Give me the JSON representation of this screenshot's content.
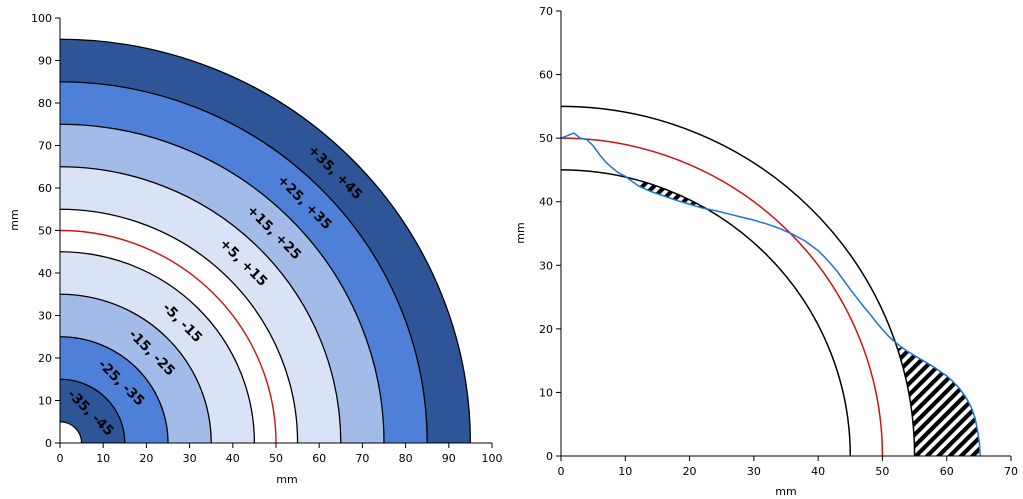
{
  "chart_data": [
    {
      "type": "quarter-ring-contour",
      "xlabel": "mm",
      "ylabel": "mm",
      "xlim": [
        0,
        100
      ],
      "ylim": [
        0,
        100
      ],
      "xticks": [
        0,
        10,
        20,
        30,
        40,
        50,
        60,
        70,
        80,
        90,
        100
      ],
      "yticks": [
        0,
        10,
        20,
        30,
        40,
        50,
        60,
        70,
        80,
        90,
        100
      ],
      "reference_radius": 50,
      "reference_color": "#cc1111",
      "inner_hole_radius": 5,
      "bands": [
        {
          "r_inner": 5,
          "r_outer": 15,
          "label": "-35, -45",
          "color": "#2e5597"
        },
        {
          "r_inner": 15,
          "r_outer": 25,
          "label": "-25, -35",
          "color": "#4f80d8"
        },
        {
          "r_inner": 25,
          "r_outer": 35,
          "label": "-15, -25",
          "color": "#a3bbe9"
        },
        {
          "r_inner": 35,
          "r_outer": 45,
          "label": "-5, -15",
          "color": "#dae3f6"
        },
        {
          "r_inner": 45,
          "r_outer": 55,
          "label": "",
          "color": "#ffffff"
        },
        {
          "r_inner": 55,
          "r_outer": 65,
          "label": "+5, +15",
          "color": "#dae3f6"
        },
        {
          "r_inner": 65,
          "r_outer": 75,
          "label": "+15, +25",
          "color": "#a3bbe9"
        },
        {
          "r_inner": 75,
          "r_outer": 85,
          "label": "+25, +35",
          "color": "#4f80d8"
        },
        {
          "r_inner": 85,
          "r_outer": 95,
          "label": "+35, +45",
          "color": "#2e5597"
        }
      ]
    },
    {
      "type": "line",
      "xlabel": "mm",
      "ylabel": "mm",
      "xlim": [
        0,
        70
      ],
      "ylim": [
        0,
        70
      ],
      "xticks": [
        0,
        10,
        20,
        30,
        40,
        50,
        60,
        70
      ],
      "yticks": [
        0,
        10,
        20,
        30,
        40,
        50,
        60,
        70
      ],
      "tolerance_arcs": [
        {
          "radius": 45,
          "color": "#000000"
        },
        {
          "radius": 55,
          "color": "#000000"
        }
      ],
      "nominal_arc": {
        "radius": 50,
        "color": "#cc1111"
      },
      "measured_color": "#1a74d9",
      "measured_profile": {
        "x": [
          0,
          1,
          2,
          3,
          4,
          5,
          6,
          7,
          8,
          9,
          10,
          12,
          14,
          16,
          18,
          20,
          22,
          24,
          26,
          28,
          30,
          32,
          34,
          36,
          38,
          40,
          41,
          42,
          43,
          44,
          45,
          46,
          47,
          48,
          49,
          50,
          51,
          52,
          53,
          54,
          55,
          56,
          57,
          58,
          59,
          60,
          61,
          62,
          63,
          63.8,
          64.4,
          64.8,
          65.1,
          65.2
        ],
        "y": [
          50,
          50.4,
          50.8,
          50,
          49.8,
          48.8,
          47.4,
          46.2,
          45.3,
          44.5,
          44,
          42.5,
          41.6,
          40.9,
          40.2,
          39.6,
          39,
          38.6,
          38.1,
          37.6,
          37.1,
          36.5,
          35.8,
          34.9,
          33.8,
          32.3,
          31.3,
          30.2,
          29,
          27.6,
          26.2,
          24.9,
          23.6,
          22.4,
          21.1,
          19.9,
          18.8,
          17.9,
          17.1,
          16.4,
          15.8,
          15.2,
          14.6,
          14,
          13.3,
          12.6,
          11.7,
          10.6,
          9.2,
          7.7,
          6,
          4,
          2,
          0
        ]
      }
    }
  ]
}
